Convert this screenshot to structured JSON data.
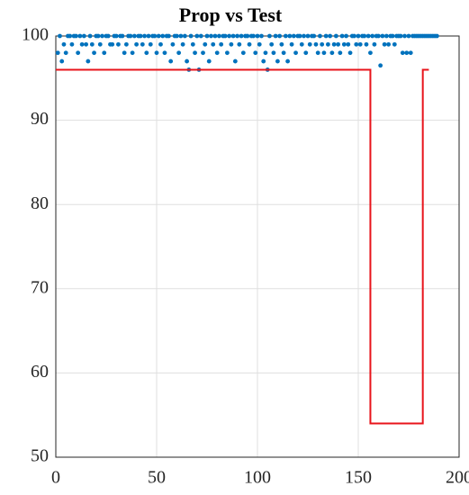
{
  "chart_data": {
    "type": "scatter",
    "title": "Prop vs Test",
    "xlim": [
      0,
      200
    ],
    "xticks": [
      0,
      50,
      100,
      150,
      200
    ],
    "ylim": [
      50,
      100
    ],
    "yticks": [
      50,
      60,
      70,
      80,
      90,
      100
    ],
    "grid": true,
    "series": [
      {
        "type": "scatter",
        "color": "#0072bd",
        "x": [
          1,
          2,
          3,
          4,
          5,
          6,
          7,
          8,
          9,
          10,
          11,
          12,
          13,
          14,
          15,
          16,
          17,
          18,
          19,
          20,
          21,
          22,
          23,
          24,
          25,
          26,
          27,
          28,
          29,
          30,
          31,
          32,
          33,
          34,
          35,
          36,
          37,
          38,
          39,
          40,
          41,
          42,
          43,
          44,
          45,
          46,
          47,
          48,
          49,
          50,
          51,
          52,
          53,
          54,
          55,
          56,
          57,
          58,
          59,
          60,
          61,
          62,
          63,
          64,
          65,
          66,
          67,
          68,
          69,
          70,
          71,
          72,
          73,
          74,
          75,
          76,
          77,
          78,
          79,
          80,
          81,
          82,
          83,
          84,
          85,
          86,
          87,
          88,
          89,
          90,
          91,
          92,
          93,
          94,
          95,
          96,
          97,
          98,
          99,
          100,
          101,
          102,
          103,
          104,
          105,
          106,
          107,
          108,
          109,
          110,
          111,
          112,
          113,
          114,
          115,
          116,
          117,
          118,
          119,
          120,
          121,
          122,
          123,
          124,
          125,
          126,
          127,
          128,
          129,
          130,
          131,
          132,
          133,
          134,
          135,
          136,
          137,
          138,
          139,
          140,
          141,
          142,
          143,
          144,
          145,
          146,
          147,
          148,
          149,
          150,
          151,
          152,
          153,
          154,
          155,
          156,
          157,
          158,
          159,
          160,
          161,
          162,
          163,
          164,
          165,
          166,
          167,
          168,
          169,
          170,
          171,
          172,
          173,
          174,
          175,
          176,
          177,
          178,
          179,
          180,
          181,
          182,
          183,
          184,
          185,
          186,
          187,
          188,
          189
        ],
        "values": [
          98,
          100,
          97,
          99,
          98,
          100,
          100,
          99,
          100,
          100,
          98,
          100,
          99,
          100,
          99,
          97,
          100,
          99,
          98,
          100,
          100,
          99,
          100,
          98,
          100,
          100,
          99,
          99,
          100,
          100,
          99,
          100,
          100,
          98,
          99,
          100,
          100,
          98,
          100,
          99,
          100,
          100,
          99,
          100,
          98,
          100,
          99,
          100,
          100,
          98,
          100,
          99,
          100,
          98,
          100,
          100,
          97,
          99,
          100,
          100,
          98,
          100,
          99,
          100,
          97,
          96,
          100,
          99,
          98,
          100,
          96,
          100,
          98,
          99,
          100,
          97,
          100,
          99,
          100,
          98,
          100,
          99,
          100,
          100,
          98,
          100,
          99,
          100,
          97,
          100,
          99,
          100,
          98,
          100,
          100,
          99,
          100,
          100,
          98,
          100,
          99,
          100,
          97,
          98,
          96,
          100,
          99,
          98,
          100,
          97,
          100,
          99,
          98,
          100,
          97,
          100,
          99,
          100,
          98,
          100,
          100,
          99,
          100,
          98,
          100,
          99,
          100,
          100,
          99,
          98,
          100,
          99,
          98,
          100,
          99,
          100,
          98,
          99,
          100,
          99,
          98,
          100,
          99,
          100,
          99,
          98,
          100,
          100,
          99,
          100,
          99,
          100,
          100,
          99,
          100,
          98,
          100,
          99,
          100,
          100,
          96.5,
          100,
          99,
          100,
          99,
          100,
          100,
          99,
          100,
          100,
          100,
          98,
          100,
          98,
          100,
          98,
          100,
          100,
          100,
          100,
          100,
          100,
          100,
          100,
          100,
          100,
          100,
          100,
          100
        ]
      },
      {
        "type": "line",
        "color": "#e8141b",
        "x": [
          0,
          156,
          156,
          182,
          182,
          185
        ],
        "values": [
          96,
          96,
          54,
          54,
          96,
          96
        ]
      }
    ]
  }
}
